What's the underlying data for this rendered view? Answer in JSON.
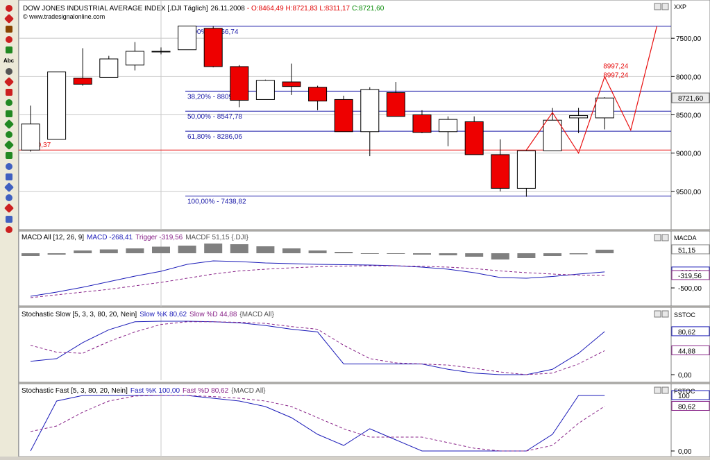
{
  "toolbar": {
    "items": [
      {
        "icon": "pencil-icon",
        "color": "#cc2020"
      },
      {
        "icon": "line-tool-icon",
        "color": "#cc2020"
      },
      {
        "icon": "ruler-icon",
        "color": "#884400"
      },
      {
        "icon": "brush-icon",
        "color": "#cc2020"
      },
      {
        "icon": "arrow-up-icon",
        "color": "#228822"
      },
      {
        "icon": "text-tool-icon",
        "color": "#000000",
        "glyph": "Abc"
      },
      {
        "icon": "vertical-line-icon",
        "color": "#555555"
      },
      {
        "icon": "trend-line-icon",
        "color": "#cc2020"
      },
      {
        "icon": "channel-icon",
        "color": "#cc2020"
      },
      {
        "icon": "fibonacci-icon",
        "color": "#228822"
      },
      {
        "icon": "grid-icon",
        "color": "#228822"
      },
      {
        "icon": "fan-icon",
        "color": "#228822"
      },
      {
        "icon": "gann-icon",
        "color": "#228822"
      },
      {
        "icon": "wave-icon",
        "color": "#228822"
      },
      {
        "icon": "arc-icon",
        "color": "#228822"
      },
      {
        "icon": "rectangle-icon",
        "color": "#4060c0"
      },
      {
        "icon": "ellipse-icon",
        "color": "#4060c0"
      },
      {
        "icon": "circle-icon",
        "color": "#4060c0"
      },
      {
        "icon": "triangle-icon",
        "color": "#4060c0"
      },
      {
        "icon": "magnet-icon",
        "color": "#cc2020"
      },
      {
        "icon": "cursor-icon",
        "color": "#4060c0"
      },
      {
        "icon": "eraser-icon",
        "color": "#cc2020"
      }
    ]
  },
  "main_chart": {
    "title_prefix": "DOW JONES INDUSTRIAL AVERAGE INDEX [.DJI  Täglich]",
    "title_date": "26.11.2008",
    "title_ohlc": "- O:8464,49 H:8721,83 L:8311,17",
    "title_close": "C:8721,60",
    "copyright": "© www.tradesignalonline.com",
    "axis_id": "XXP",
    "y_ticks": [
      "9500,00",
      "9000,00",
      "8500,00",
      "8000,00",
      "7500,00"
    ],
    "last_price_label": "8721,60",
    "low_label": "8040,37",
    "projection_label_1": "8997,24",
    "projection_label_2": "8997,24",
    "fib_labels": [
      "0,00% - 9656,74",
      "38,20% - 8809,49",
      "50,00% - 8547,78",
      "61,80% - 8286,06",
      "100,00% - 7438,82"
    ]
  },
  "macd_panel": {
    "title_name": "MACD All [12, 26, 9]",
    "title_macd": "MACD -268,41",
    "title_trigger": "Trigger -319,56",
    "title_rest": "MACDF 51,15 {.DJI}",
    "axis_id": "MACDA",
    "labels": [
      "51,15",
      "-268,41",
      "-319,56",
      "-500,00"
    ]
  },
  "sstoc_panel": {
    "title_name": "Stochastic Slow [5, 3, 3, 80, 20, Nein]",
    "title_k": "Slow %K 80,62",
    "title_d": "Slow %D 44,88",
    "title_rest": "{MACD All}",
    "axis_id": "SSTOC",
    "labels": [
      "80,62",
      "44,88",
      "0,00"
    ]
  },
  "fstoc_panel": {
    "title_name": "Stochastic Fast [5, 3, 80, 20, Nein]",
    "title_k": "Fast %K 100,00",
    "title_d": "Fast %D 80,62",
    "title_rest": "{MACD All}",
    "axis_id": "FSTOC",
    "labels": [
      "100",
      "80,62",
      "0,00"
    ]
  },
  "chart_data": [
    {
      "type": "candlestick",
      "title": "DOW JONES INDUSTRIAL AVERAGE INDEX [.DJI Täglich]",
      "ylim": [
        7000,
        10000
      ],
      "y_ticks": [
        7500,
        8000,
        8500,
        9000,
        9500
      ],
      "candles": [
        {
          "o": 8040,
          "h": 8620,
          "l": 8020,
          "c": 8380
        },
        {
          "o": 8180,
          "h": 9060,
          "l": 8180,
          "c": 9060
        },
        {
          "o": 8980,
          "h": 9370,
          "l": 8880,
          "c": 8900
        },
        {
          "o": 8990,
          "h": 9270,
          "l": 8990,
          "c": 9230
        },
        {
          "o": 9150,
          "h": 9450,
          "l": 9080,
          "c": 9330
        },
        {
          "o": 9330,
          "h": 9380,
          "l": 9290,
          "c": 9330
        },
        {
          "o": 9350,
          "h": 9660,
          "l": 9350,
          "c": 9660
        },
        {
          "o": 9630,
          "h": 9660,
          "l": 9120,
          "c": 9130
        },
        {
          "o": 9130,
          "h": 9150,
          "l": 8600,
          "c": 8690
        },
        {
          "o": 8700,
          "h": 8960,
          "l": 8700,
          "c": 8950
        },
        {
          "o": 8930,
          "h": 9170,
          "l": 8760,
          "c": 8870
        },
        {
          "o": 8860,
          "h": 8880,
          "l": 8560,
          "c": 8680
        },
        {
          "o": 8700,
          "h": 8750,
          "l": 8280,
          "c": 8280
        },
        {
          "o": 8280,
          "h": 8860,
          "l": 7960,
          "c": 8830
        },
        {
          "o": 8790,
          "h": 8930,
          "l": 8480,
          "c": 8480
        },
        {
          "o": 8500,
          "h": 8560,
          "l": 8260,
          "c": 8270
        },
        {
          "o": 8280,
          "h": 8480,
          "l": 8090,
          "c": 8440
        },
        {
          "o": 8410,
          "h": 8480,
          "l": 7980,
          "c": 7980
        },
        {
          "o": 7980,
          "h": 8180,
          "l": 7500,
          "c": 7540
        },
        {
          "o": 7540,
          "h": 8040,
          "l": 7430,
          "c": 8030
        },
        {
          "o": 8030,
          "h": 8590,
          "l": 8030,
          "c": 8430
        },
        {
          "o": 8460,
          "h": 8590,
          "l": 8260,
          "c": 8490
        },
        {
          "o": 8460,
          "h": 8730,
          "l": 8310,
          "c": 8720
        }
      ],
      "projection": [
        {
          "x": 19,
          "y": 8040
        },
        {
          "x": 20,
          "y": 8530
        },
        {
          "x": 21,
          "y": 8000
        },
        {
          "x": 22,
          "y": 8997
        },
        {
          "x": 23,
          "y": 8300
        },
        {
          "x": 24,
          "y": 9656
        }
      ],
      "fib_levels": [
        {
          "pct": "0,00%",
          "value": 9656.74
        },
        {
          "pct": "38,20%",
          "value": 8809.49
        },
        {
          "pct": "50,00%",
          "value": 8547.78
        },
        {
          "pct": "61,80%",
          "value": 8286.06
        },
        {
          "pct": "100,00%",
          "value": 7438.82
        }
      ],
      "support_line": 8040.37,
      "last_close": 8721.6,
      "colors": {
        "up": "#ffffff",
        "down": "#ee0000",
        "fib": "#1a1aa8",
        "projection": "#e81010",
        "grid": "#c8c8c8"
      }
    },
    {
      "type": "bar+line",
      "title": "MACD All [12, 26, 9]",
      "ylim": [
        -700,
        130
      ],
      "histogram": [
        -40,
        -20,
        40,
        55,
        70,
        95,
        110,
        140,
        130,
        100,
        70,
        40,
        20,
        0,
        -10,
        -20,
        -30,
        -50,
        -90,
        -70,
        -40,
        -15,
        51.15
      ],
      "series": [
        {
          "name": "MACD",
          "color": "#1a1ab8",
          "values": [
            -620,
            -560,
            -490,
            -410,
            -330,
            -260,
            -160,
            -110,
            -120,
            -140,
            -150,
            -160,
            -165,
            -170,
            -180,
            -200,
            -230,
            -280,
            -350,
            -360,
            -335,
            -300,
            -268.41
          ]
        },
        {
          "name": "Trigger",
          "color": "#882288",
          "values": [
            -640,
            -600,
            -560,
            -520,
            -470,
            -420,
            -360,
            -300,
            -255,
            -230,
            -210,
            -195,
            -185,
            -180,
            -182,
            -188,
            -200,
            -220,
            -255,
            -280,
            -300,
            -315,
            -319.56
          ]
        }
      ]
    },
    {
      "type": "line",
      "title": "Stochastic Slow [5, 3, 3, 80, 20, Nein]",
      "ylim": [
        0,
        100
      ],
      "series": [
        {
          "name": "Slow %K",
          "color": "#1a1ab8",
          "values": [
            25,
            30,
            60,
            84,
            99,
            100,
            100,
            99,
            97,
            92,
            85,
            80,
            20,
            20,
            20,
            20,
            10,
            3,
            0,
            0,
            10,
            40,
            80.62
          ]
        },
        {
          "name": "Slow %D",
          "color": "#882288",
          "values": [
            55,
            42,
            40,
            62,
            80,
            94,
            99,
            99,
            98,
            96,
            90,
            85,
            55,
            30,
            22,
            20,
            18,
            12,
            5,
            0,
            3,
            20,
            44.88
          ]
        }
      ]
    },
    {
      "type": "line",
      "title": "Stochastic Fast [5, 3, 80, 20, Nein]",
      "ylim": [
        0,
        100
      ],
      "series": [
        {
          "name": "Fast %K",
          "color": "#1a1ab8",
          "values": [
            0,
            90,
            100,
            100,
            100,
            100,
            100,
            95,
            90,
            80,
            60,
            30,
            10,
            40,
            20,
            0,
            0,
            0,
            0,
            0,
            30,
            100,
            100
          ]
        },
        {
          "name": "Fast %D",
          "color": "#882288",
          "values": [
            35,
            45,
            70,
            90,
            99,
            100,
            100,
            98,
            95,
            90,
            80,
            60,
            40,
            25,
            25,
            25,
            15,
            5,
            0,
            0,
            10,
            50,
            80.62
          ]
        }
      ]
    }
  ]
}
